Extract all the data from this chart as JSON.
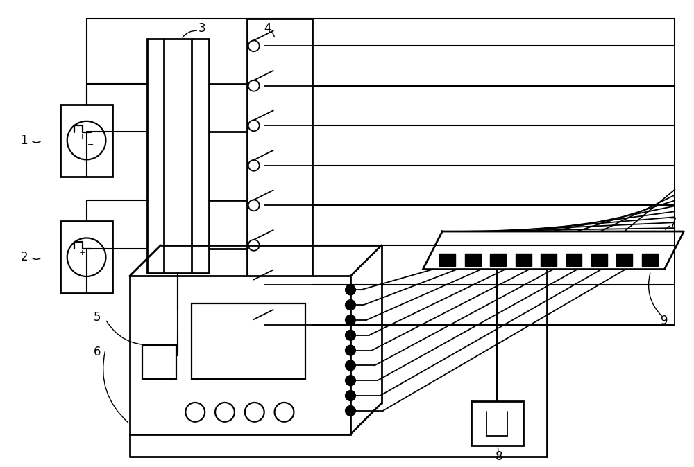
{
  "bg_color": "#ffffff",
  "line_color": "#000000",
  "lw": 1.6,
  "lw_thick": 2.0,
  "fig_width": 10.0,
  "fig_height": 6.74
}
